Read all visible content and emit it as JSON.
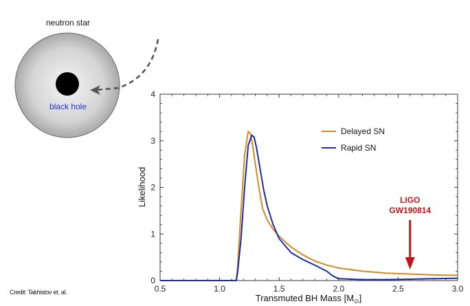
{
  "diagram": {
    "neutron_star_label": "neutron star",
    "black_hole_label": "black hole",
    "colors": {
      "star_edge": "#8a8a8a",
      "star_center": "#f2f2f2",
      "black_hole": "#000000",
      "black_hole_label": "#1f33c8",
      "arrow": "#555555"
    }
  },
  "credit": "Credit: Takhistov et. al.",
  "chart_data": {
    "type": "line",
    "xlabel": "Transmuted BH Mass [M",
    "xlabel_sub": "⊙",
    "xlabel_end": "]",
    "ylabel": "Likelihood",
    "xlim": [
      0.5,
      3.0
    ],
    "ylim": [
      0,
      4
    ],
    "x_ticks": [
      "0.5",
      "1.0",
      "1.5",
      "2.0",
      "2.5",
      "3.0"
    ],
    "y_ticks": [
      "0",
      "1",
      "2",
      "3",
      "4"
    ],
    "grid": false,
    "legend_position": "top-right",
    "series": [
      {
        "name": "Delayed SN",
        "color": "#d4891c",
        "x": [
          0.5,
          1.14,
          1.15,
          1.18,
          1.21,
          1.24,
          1.26,
          1.28,
          1.3,
          1.33,
          1.36,
          1.4,
          1.45,
          1.5,
          1.6,
          1.7,
          1.8,
          1.9,
          2.0,
          2.2,
          2.4,
          2.6,
          2.8,
          3.0
        ],
        "y": [
          0,
          0,
          0.25,
          1.5,
          2.7,
          3.2,
          3.15,
          2.85,
          2.5,
          2.0,
          1.55,
          1.3,
          1.1,
          0.95,
          0.72,
          0.55,
          0.42,
          0.33,
          0.27,
          0.2,
          0.16,
          0.14,
          0.12,
          0.11
        ]
      },
      {
        "name": "Rapid SN",
        "color": "#1a2aa8",
        "x": [
          0.5,
          1.14,
          1.15,
          1.18,
          1.21,
          1.24,
          1.27,
          1.29,
          1.31,
          1.34,
          1.37,
          1.4,
          1.45,
          1.5,
          1.6,
          1.7,
          1.8,
          1.9,
          1.95,
          2.0,
          2.2,
          2.4,
          2.6,
          2.8,
          3.0
        ],
        "y": [
          0,
          0,
          0.15,
          0.9,
          2.0,
          2.9,
          3.12,
          3.08,
          2.85,
          2.4,
          1.95,
          1.6,
          1.2,
          0.9,
          0.6,
          0.45,
          0.33,
          0.2,
          0.1,
          0.04,
          0.02,
          0.02,
          0.03,
          0.04,
          0.05
        ]
      }
    ],
    "annotation": {
      "label_line1": "LIGO",
      "label_line2": "GW190814",
      "x": 2.6,
      "color": "#c0161b"
    }
  }
}
